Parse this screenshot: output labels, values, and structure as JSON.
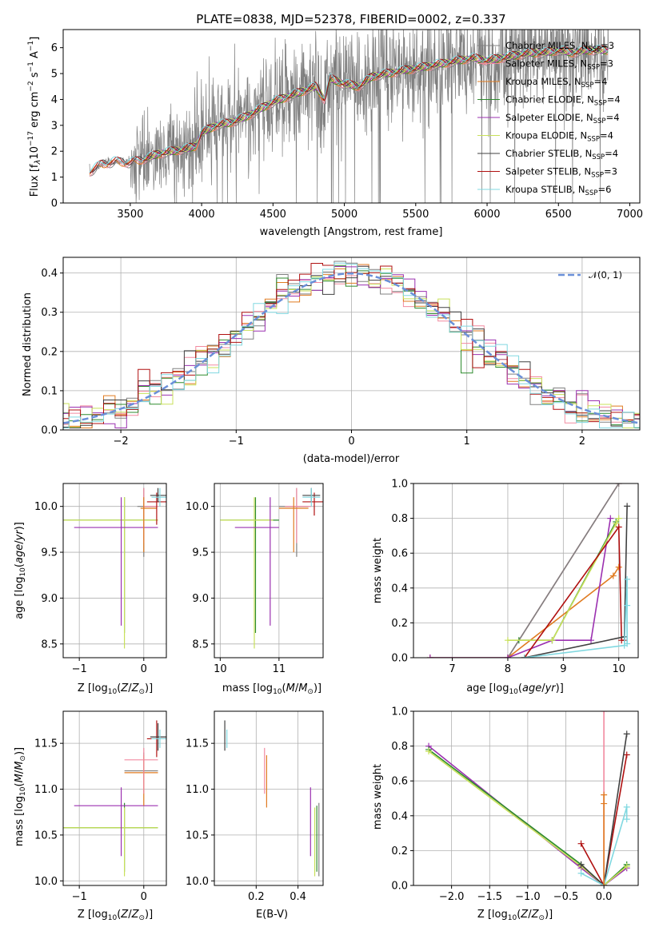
{
  "figure_title": "PLATE=0838, MJD=52378, FIBERID=0002, z=0.337",
  "colors": {
    "chabrier_miles": "#808080",
    "salpeter_miles": "#f28aa0",
    "kroupa_miles": "#e07b20",
    "chabrier_elodie": "#2e8b2e",
    "salpeter_elodie": "#9b30b0",
    "kroupa_elodie": "#c8e05a",
    "chabrier_stelib": "#404040",
    "salpeter_stelib": "#b01010",
    "kroupa_stelib": "#80d8e0",
    "gaussian": "#6a8fd8",
    "spectrum": "#7f7f7f"
  },
  "legend_models": [
    {
      "label": "Chabrier MILES, N",
      "sub": "SSP",
      "suffix": "=3",
      "color_key": "chabrier_miles"
    },
    {
      "label": "Salpeter MILES, N",
      "sub": "SSP",
      "suffix": "=3",
      "color_key": "salpeter_miles"
    },
    {
      "label": "Kroupa MILES, N",
      "sub": "SSP",
      "suffix": "=4",
      "color_key": "kroupa_miles"
    },
    {
      "label": "Chabrier ELODIE, N",
      "sub": "SSP",
      "suffix": "=4",
      "color_key": "chabrier_elodie"
    },
    {
      "label": "Salpeter ELODIE, N",
      "sub": "SSP",
      "suffix": "=4",
      "color_key": "salpeter_elodie"
    },
    {
      "label": "Kroupa ELODIE, N",
      "sub": "SSP",
      "suffix": "=4",
      "color_key": "kroupa_elodie"
    },
    {
      "label": "Chabrier STELIB, N",
      "sub": "SSP",
      "suffix": "=4",
      "color_key": "chabrier_stelib"
    },
    {
      "label": "Salpeter STELIB, N",
      "sub": "SSP",
      "suffix": "=3",
      "color_key": "salpeter_stelib"
    },
    {
      "label": "Kroupa STELIB, N",
      "sub": "SSP",
      "suffix": "=6",
      "color_key": "kroupa_stelib"
    }
  ],
  "chart_data": [
    {
      "id": "spectrum",
      "type": "line",
      "xlabel": "wavelength [Angstrom, rest frame]",
      "ylabel": "Flux [f_λ 10^-17 erg cm^-2 s^-1 A^-1]",
      "xlim": [
        3030,
        7070
      ],
      "ylim": [
        0,
        6.7
      ],
      "xticks": [
        3500,
        4000,
        4500,
        5000,
        5500,
        6000,
        6500,
        7000
      ],
      "yticks": [
        0,
        1,
        2,
        3,
        4,
        5,
        6
      ],
      "grid": false,
      "legend": "upper right",
      "continuum": {
        "x": [
          3215,
          3300,
          3400,
          3500,
          3600,
          3700,
          3800,
          3900,
          3960,
          4000,
          4100,
          4200,
          4300,
          4400,
          4500,
          4600,
          4700,
          4800,
          4860,
          4900,
          5000,
          5100,
          5200,
          5300,
          5400,
          5500,
          5600,
          5700,
          5800,
          5900,
          6000,
          6100,
          6200,
          6300,
          6400,
          6500,
          6600,
          6700,
          6800,
          6900
        ],
        "y": [
          1.2,
          1.5,
          1.6,
          1.55,
          1.7,
          1.9,
          2.0,
          2.1,
          2.2,
          2.7,
          3.0,
          3.1,
          3.3,
          3.6,
          3.9,
          4.1,
          4.3,
          4.5,
          4.0,
          4.8,
          4.6,
          4.5,
          4.9,
          5.0,
          5.1,
          5.2,
          5.3,
          5.4,
          5.5,
          5.6,
          5.5,
          5.6,
          5.7,
          5.8,
          5.8,
          5.9,
          5.8,
          5.9,
          5.9,
          5.9
        ]
      }
    },
    {
      "id": "residuals",
      "type": "line",
      "xlabel": "(data-model)/error",
      "ylabel": "Normed distribution",
      "xlim": [
        -2.5,
        2.5
      ],
      "ylim": [
        0,
        0.44
      ],
      "xticks": [
        -2,
        -1,
        0,
        1,
        2
      ],
      "yticks": [
        0.0,
        0.1,
        0.2,
        0.3,
        0.4
      ],
      "grid": true,
      "legend": "upper right",
      "legend_label": "𝒩(0, 1)",
      "hist_centers": [
        -2.4,
        -2.2,
        -2.0,
        -1.8,
        -1.6,
        -1.4,
        -1.2,
        -1.0,
        -0.8,
        -0.6,
        -0.4,
        -0.2,
        0.0,
        0.2,
        0.4,
        0.6,
        0.8,
        1.0,
        1.2,
        1.4,
        1.6,
        1.8,
        2.0,
        2.2,
        2.4
      ],
      "hist_values": [
        0.03,
        0.05,
        0.08,
        0.11,
        0.15,
        0.18,
        0.2,
        0.24,
        0.28,
        0.31,
        0.34,
        0.35,
        0.33,
        0.37,
        0.4,
        0.34,
        0.31,
        0.27,
        0.22,
        0.18,
        0.14,
        0.11,
        0.08,
        0.05,
        0.03
      ]
    },
    {
      "id": "age_vs_Z",
      "type": "scatter",
      "xlabel": "Z [log10(Z/Z⊙)]",
      "ylabel": "age  [log10(age/yr)]",
      "xlim": [
        -1.25,
        0.35
      ],
      "ylim": [
        8.35,
        10.25
      ],
      "xticks": [
        -1,
        0
      ],
      "yticks": [
        8.5,
        9.0,
        9.5,
        10.0
      ],
      "grid": true
    },
    {
      "id": "age_vs_mass",
      "type": "scatter",
      "xlabel": "mass [log10(M/M⊙)]",
      "xlim": [
        9.9,
        11.75
      ],
      "ylim": [
        8.35,
        10.25
      ],
      "xticks": [
        10,
        11
      ],
      "yticks": [
        8.5,
        9.0,
        9.5,
        10.0
      ],
      "grid": true
    },
    {
      "id": "massweight_vs_age",
      "type": "line",
      "xlabel": "age  [log10(age/yr)]",
      "ylabel": "mass weight",
      "xlim": [
        6.3,
        10.35
      ],
      "ylim": [
        0,
        1
      ],
      "xticks": [
        7,
        8,
        9,
        10
      ],
      "yticks": [
        0.0,
        0.2,
        0.4,
        0.6,
        0.8,
        1.0
      ],
      "grid": true,
      "series": [
        {
          "color_key": "salpeter_miles",
          "x": [
            8.0,
            10.0
          ],
          "y": [
            0.0,
            1.0
          ]
        },
        {
          "color_key": "chabrier_miles",
          "x": [
            8.0,
            10.0
          ],
          "y": [
            0.0,
            1.0
          ]
        },
        {
          "color_key": "kroupa_miles",
          "x": [
            6.6,
            8.0,
            9.9,
            10.0
          ],
          "y": [
            0.0,
            0.0,
            0.47,
            0.52
          ]
        },
        {
          "color_key": "salpeter_elodie",
          "x": [
            6.6,
            8.0,
            8.8,
            9.5,
            9.85
          ],
          "y": [
            0.0,
            0.0,
            0.1,
            0.1,
            0.8
          ]
        },
        {
          "color_key": "chabrier_elodie",
          "x": [
            8.2,
            8.8,
            9.95
          ],
          "y": [
            0.1,
            0.1,
            0.78
          ]
        },
        {
          "color_key": "kroupa_elodie",
          "x": [
            8.0,
            8.8,
            9.95,
            10.0
          ],
          "y": [
            0.1,
            0.1,
            0.77,
            0.8
          ]
        },
        {
          "color_key": "salpeter_stelib",
          "x": [
            8.3,
            10.0,
            10.05,
            10.1
          ],
          "y": [
            0.0,
            0.75,
            0.1,
            0.1
          ]
        },
        {
          "color_key": "chabrier_stelib",
          "x": [
            8.3,
            10.1,
            10.15
          ],
          "y": [
            0.0,
            0.12,
            0.87
          ]
        },
        {
          "color_key": "kroupa_stelib",
          "x": [
            8.3,
            10.1,
            10.15,
            10.15,
            10.15
          ],
          "y": [
            0.0,
            0.07,
            0.45,
            0.3,
            0.08
          ]
        }
      ]
    },
    {
      "id": "mass_vs_Z",
      "type": "scatter",
      "xlabel": "Z [log10(Z/Z⊙)]",
      "ylabel": "mass [log10(M/M⊙)]",
      "xlim": [
        -1.25,
        0.35
      ],
      "ylim": [
        9.95,
        11.85
      ],
      "xticks": [
        -1,
        0
      ],
      "yticks": [
        10.0,
        10.5,
        11.0,
        11.5
      ],
      "grid": true
    },
    {
      "id": "mass_vs_ebv",
      "type": "scatter",
      "xlabel": "E(B-V)",
      "xlim": [
        0.0,
        0.52
      ],
      "ylim": [
        9.95,
        11.85
      ],
      "xticks": [
        0.2,
        0.4
      ],
      "yticks": [
        10.0,
        10.5,
        11.0,
        11.5
      ],
      "grid": true,
      "points": [
        {
          "color_key": "chabrier_stelib",
          "x": 0.05,
          "ylo": 11.42,
          "yhi": 11.75
        },
        {
          "color_key": "kroupa_stelib",
          "x": 0.06,
          "ylo": 11.45,
          "yhi": 11.65
        },
        {
          "color_key": "salpeter_miles",
          "x": 0.24,
          "ylo": 10.95,
          "yhi": 11.45
        },
        {
          "color_key": "kroupa_miles",
          "x": 0.25,
          "ylo": 10.8,
          "yhi": 11.37
        },
        {
          "color_key": "salpeter_elodie",
          "x": 0.46,
          "ylo": 10.27,
          "yhi": 11.02
        },
        {
          "color_key": "kroupa_elodie",
          "x": 0.48,
          "ylo": 10.05,
          "yhi": 10.8
        },
        {
          "color_key": "chabrier_elodie",
          "x": 0.49,
          "ylo": 10.1,
          "yhi": 10.82
        },
        {
          "color_key": "chabrier_miles",
          "x": 0.5,
          "ylo": 10.05,
          "yhi": 10.85
        }
      ]
    },
    {
      "id": "massweight_vs_Z",
      "type": "line",
      "xlabel": "Z [log10(Z/Z⊙)]",
      "ylabel": "mass weight",
      "xlim": [
        -2.5,
        0.45
      ],
      "ylim": [
        0,
        1
      ],
      "xticks": [
        -2.0,
        -1.5,
        -1.0,
        -0.5,
        0.0
      ],
      "yticks": [
        0.0,
        0.2,
        0.4,
        0.6,
        0.8,
        1.0
      ],
      "grid": true,
      "series": [
        {
          "color_key": "salpeter_elodie",
          "x": [
            -2.3,
            -0.3,
            0.0,
            0.3
          ],
          "y": [
            0.8,
            0.1,
            0.0,
            0.1
          ]
        },
        {
          "color_key": "chabrier_elodie",
          "x": [
            -2.3,
            -0.3,
            0.0,
            0.3
          ],
          "y": [
            0.78,
            0.12,
            0.0,
            0.12
          ]
        },
        {
          "color_key": "kroupa_elodie",
          "x": [
            -2.3,
            -0.3,
            0.0,
            0.3
          ],
          "y": [
            0.77,
            0.11,
            0.0,
            0.11
          ]
        },
        {
          "color_key": "salpeter_stelib",
          "x": [
            -0.3,
            0.0,
            0.3
          ],
          "y": [
            0.24,
            0.0,
            0.75
          ]
        },
        {
          "color_key": "chabrier_stelib",
          "x": [
            -0.3,
            0.0,
            0.3
          ],
          "y": [
            0.12,
            0.0,
            0.87
          ]
        },
        {
          "color_key": "kroupa_stelib",
          "x": [
            -0.3,
            0.0,
            0.3,
            0.3
          ],
          "y": [
            0.07,
            0.0,
            0.45,
            0.38
          ]
        },
        {
          "color_key": "salpeter_miles",
          "x": [
            0.0,
            0.0
          ],
          "y": [
            0.0,
            1.0
          ]
        },
        {
          "color_key": "kroupa_miles",
          "x": [
            0.0,
            0.0,
            0.0
          ],
          "y": [
            0.0,
            0.47,
            0.52
          ]
        }
      ]
    }
  ]
}
